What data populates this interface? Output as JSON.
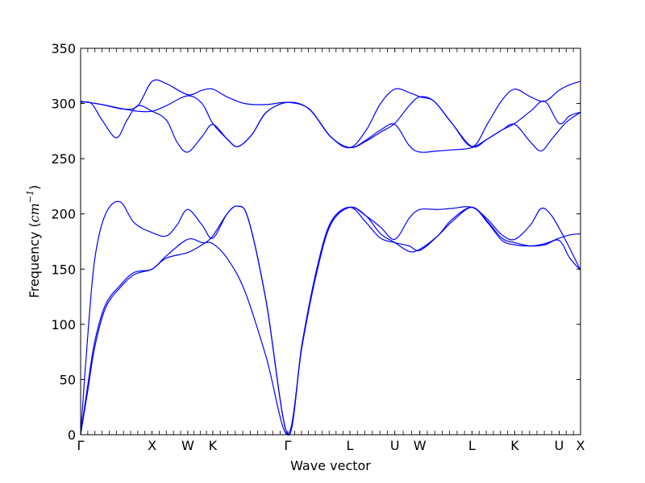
{
  "chart_data": {
    "type": "line",
    "title": "",
    "xlabel": "Wave vector",
    "ylabel": "Frequency (cm⁻¹)",
    "ylabel_prefix": "Frequency (",
    "ylabel_unit": "cm",
    "ylabel_exp": "−1",
    "ylabel_suffix": ")",
    "xlim": [
      0,
      7.0
    ],
    "ylim": [
      0,
      350
    ],
    "yticks": [
      0,
      50,
      100,
      150,
      200,
      250,
      300,
      350
    ],
    "grid": false,
    "legend": "none",
    "line_color": "#0000ff",
    "high_symmetry_points": [
      {
        "label": "Γ",
        "x": 0.0
      },
      {
        "label": "X",
        "x": 1.0
      },
      {
        "label": "W",
        "x": 1.5
      },
      {
        "label": "K",
        "x": 1.85
      },
      {
        "label": "Γ",
        "x": 2.9
      },
      {
        "label": "L",
        "x": 3.77
      },
      {
        "label": "U",
        "x": 4.4
      },
      {
        "label": "W",
        "x": 4.75
      },
      {
        "label": "L",
        "x": 5.48
      },
      {
        "label": "K",
        "x": 6.08
      },
      {
        "label": "U",
        "x": 6.7
      },
      {
        "label": "X",
        "x": 7.0
      }
    ],
    "series": [
      {
        "values": [
          [
            0,
            0
          ],
          [
            0.1,
            45
          ],
          [
            0.2,
            85
          ],
          [
            0.35,
            118
          ],
          [
            0.55,
            135
          ],
          [
            0.75,
            147
          ],
          [
            1.0,
            150
          ],
          [
            1.2,
            162
          ],
          [
            1.5,
            177
          ],
          [
            1.7,
            174
          ],
          [
            1.85,
            173
          ],
          [
            2.05,
            160
          ],
          [
            2.3,
            130
          ],
          [
            2.6,
            70
          ],
          [
            2.9,
            0
          ],
          [
            3.1,
            80
          ],
          [
            3.3,
            145
          ],
          [
            3.5,
            190
          ],
          [
            3.77,
            206
          ],
          [
            4.0,
            198
          ],
          [
            4.2,
            182
          ],
          [
            4.4,
            174
          ],
          [
            4.6,
            166
          ],
          [
            4.75,
            168
          ],
          [
            5.0,
            180
          ],
          [
            5.2,
            193
          ],
          [
            5.48,
            206
          ],
          [
            5.7,
            193
          ],
          [
            5.9,
            178
          ],
          [
            6.08,
            174
          ],
          [
            6.3,
            171
          ],
          [
            6.5,
            172
          ],
          [
            6.7,
            176
          ],
          [
            6.85,
            160
          ],
          [
            7.0,
            149
          ]
        ]
      },
      {
        "values": [
          [
            0,
            0
          ],
          [
            0.1,
            40
          ],
          [
            0.2,
            80
          ],
          [
            0.35,
            115
          ],
          [
            0.55,
            133
          ],
          [
            0.75,
            145
          ],
          [
            1.0,
            150
          ],
          [
            1.2,
            160
          ],
          [
            1.5,
            165
          ],
          [
            1.7,
            172
          ],
          [
            1.85,
            180
          ],
          [
            2.05,
            200
          ],
          [
            2.2,
            207
          ],
          [
            2.35,
            195
          ],
          [
            2.6,
            120
          ],
          [
            2.9,
            0
          ],
          [
            3.1,
            82
          ],
          [
            3.3,
            148
          ],
          [
            3.5,
            192
          ],
          [
            3.77,
            206
          ],
          [
            4.0,
            192
          ],
          [
            4.2,
            178
          ],
          [
            4.4,
            174
          ],
          [
            4.6,
            171
          ],
          [
            4.75,
            167
          ],
          [
            5.0,
            180
          ],
          [
            5.2,
            195
          ],
          [
            5.48,
            206
          ],
          [
            5.7,
            192
          ],
          [
            5.9,
            176
          ],
          [
            6.08,
            172
          ],
          [
            6.3,
            171
          ],
          [
            6.5,
            173
          ],
          [
            6.7,
            178
          ],
          [
            6.85,
            181
          ],
          [
            7.0,
            182
          ]
        ]
      },
      {
        "values": [
          [
            0,
            0
          ],
          [
            0.1,
            90
          ],
          [
            0.2,
            160
          ],
          [
            0.35,
            200
          ],
          [
            0.55,
            211
          ],
          [
            0.75,
            192
          ],
          [
            1.0,
            183
          ],
          [
            1.2,
            180
          ],
          [
            1.35,
            190
          ],
          [
            1.5,
            204
          ],
          [
            1.7,
            190
          ],
          [
            1.85,
            178
          ],
          [
            2.05,
            200
          ],
          [
            2.2,
            207
          ],
          [
            2.35,
            195
          ],
          [
            2.6,
            120
          ],
          [
            2.9,
            0
          ],
          [
            3.1,
            82
          ],
          [
            3.3,
            148
          ],
          [
            3.5,
            192
          ],
          [
            3.77,
            206
          ],
          [
            4.0,
            198
          ],
          [
            4.2,
            188
          ],
          [
            4.4,
            177
          ],
          [
            4.6,
            196
          ],
          [
            4.75,
            204
          ],
          [
            5.0,
            204
          ],
          [
            5.2,
            205
          ],
          [
            5.48,
            206
          ],
          [
            5.7,
            195
          ],
          [
            5.9,
            181
          ],
          [
            6.08,
            177
          ],
          [
            6.3,
            190
          ],
          [
            6.45,
            205
          ],
          [
            6.6,
            198
          ],
          [
            6.8,
            175
          ],
          [
            7.0,
            149
          ]
        ]
      },
      {
        "values": [
          [
            0,
            301
          ],
          [
            0.15,
            300
          ],
          [
            0.3,
            285
          ],
          [
            0.5,
            269
          ],
          [
            0.65,
            285
          ],
          [
            0.8,
            298
          ],
          [
            1.0,
            293
          ],
          [
            1.2,
            285
          ],
          [
            1.35,
            265
          ],
          [
            1.5,
            256
          ],
          [
            1.7,
            270
          ],
          [
            1.85,
            281
          ],
          [
            2.05,
            268
          ],
          [
            2.2,
            261
          ],
          [
            2.4,
            272
          ],
          [
            2.6,
            292
          ],
          [
            2.9,
            301
          ],
          [
            3.2,
            295
          ],
          [
            3.5,
            270
          ],
          [
            3.77,
            260
          ],
          [
            4.0,
            267
          ],
          [
            4.2,
            276
          ],
          [
            4.4,
            281
          ],
          [
            4.6,
            262
          ],
          [
            4.75,
            256
          ],
          [
            5.0,
            257
          ],
          [
            5.2,
            258
          ],
          [
            5.48,
            260
          ],
          [
            5.7,
            268
          ],
          [
            5.9,
            276
          ],
          [
            6.08,
            281
          ],
          [
            6.3,
            265
          ],
          [
            6.45,
            257
          ],
          [
            6.6,
            268
          ],
          [
            6.8,
            283
          ],
          [
            7.0,
            292
          ]
        ]
      },
      {
        "values": [
          [
            0,
            302
          ],
          [
            0.3,
            299
          ],
          [
            0.6,
            295
          ],
          [
            0.8,
            293
          ],
          [
            1.0,
            293
          ],
          [
            1.2,
            298
          ],
          [
            1.5,
            307
          ],
          [
            1.7,
            300
          ],
          [
            1.85,
            282
          ],
          [
            2.05,
            268
          ],
          [
            2.2,
            261
          ],
          [
            2.4,
            272
          ],
          [
            2.6,
            292
          ],
          [
            2.9,
            301
          ],
          [
            3.2,
            295
          ],
          [
            3.5,
            270
          ],
          [
            3.77,
            260
          ],
          [
            4.0,
            266
          ],
          [
            4.2,
            274
          ],
          [
            4.4,
            282
          ],
          [
            4.6,
            298
          ],
          [
            4.75,
            306
          ],
          [
            4.95,
            302
          ],
          [
            5.2,
            282
          ],
          [
            5.48,
            261
          ],
          [
            5.7,
            268
          ],
          [
            5.9,
            276
          ],
          [
            6.08,
            282
          ],
          [
            6.3,
            293
          ],
          [
            6.5,
            302
          ],
          [
            6.7,
            282
          ],
          [
            6.85,
            289
          ],
          [
            7.0,
            292
          ]
        ]
      },
      {
        "values": [
          [
            0,
            302
          ],
          [
            0.3,
            299
          ],
          [
            0.6,
            295
          ],
          [
            0.8,
            298
          ],
          [
            1.0,
            320
          ],
          [
            1.2,
            318
          ],
          [
            1.5,
            308
          ],
          [
            1.7,
            312
          ],
          [
            1.85,
            313
          ],
          [
            2.05,
            306
          ],
          [
            2.3,
            300
          ],
          [
            2.6,
            299
          ],
          [
            2.9,
            301
          ],
          [
            3.2,
            295
          ],
          [
            3.5,
            270
          ],
          [
            3.77,
            260
          ],
          [
            4.0,
            276
          ],
          [
            4.2,
            300
          ],
          [
            4.4,
            313
          ],
          [
            4.6,
            310
          ],
          [
            4.75,
            306
          ],
          [
            4.95,
            302
          ],
          [
            5.2,
            282
          ],
          [
            5.48,
            261
          ],
          [
            5.7,
            282
          ],
          [
            5.9,
            303
          ],
          [
            6.08,
            313
          ],
          [
            6.3,
            306
          ],
          [
            6.5,
            302
          ],
          [
            6.7,
            312
          ],
          [
            6.85,
            317
          ],
          [
            7.0,
            320
          ]
        ]
      }
    ]
  }
}
